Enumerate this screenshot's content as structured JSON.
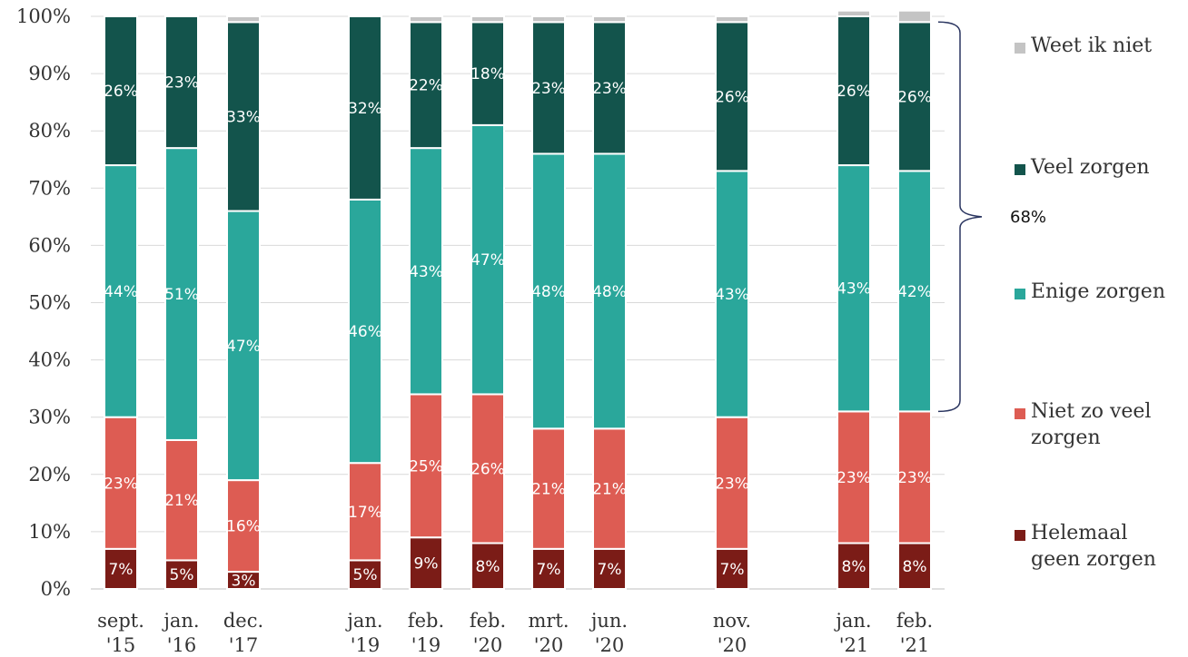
{
  "chart_data": {
    "type": "bar",
    "stacked": true,
    "normalized_percent": true,
    "ylim": [
      0,
      100
    ],
    "y_ticks": [
      "0%",
      "10%",
      "20%",
      "30%",
      "40%",
      "50%",
      "60%",
      "70%",
      "80%",
      "90%",
      "100%"
    ],
    "grid": true,
    "legend_position": "right",
    "categories": [
      {
        "line1": "sept.",
        "line2": "'15"
      },
      {
        "line1": "jan.",
        "line2": "'16"
      },
      {
        "line1": "dec.",
        "line2": "'17"
      },
      {
        "line1": "jan.",
        "line2": "'19"
      },
      {
        "line1": "feb.",
        "line2": "'19"
      },
      {
        "line1": "feb.",
        "line2": "'20"
      },
      {
        "line1": "mrt.",
        "line2": "'20"
      },
      {
        "line1": "jun.",
        "line2": "'20"
      },
      {
        "line1": "nov.",
        "line2": "'20"
      },
      {
        "line1": "jan.",
        "line2": "'21"
      },
      {
        "line1": "feb.",
        "line2": "'21"
      }
    ],
    "series": [
      {
        "name": "Helemaal geen zorgen",
        "color": "#7b1c17",
        "values": [
          7,
          5,
          3,
          5,
          9,
          8,
          7,
          7,
          7,
          8,
          8
        ],
        "labels": [
          "7%",
          "5%",
          "3%",
          "5%",
          "9%",
          "8%",
          "7%",
          "7%",
          "7%",
          "8%",
          "8%"
        ]
      },
      {
        "name": "Niet zo veel zorgen",
        "color": "#dd5c53",
        "values": [
          23,
          21,
          16,
          17,
          25,
          26,
          21,
          21,
          23,
          23,
          23
        ],
        "labels": [
          "23%",
          "21%",
          "16%",
          "17%",
          "25%",
          "26%",
          "21%",
          "21%",
          "23%",
          "23%",
          "23%"
        ]
      },
      {
        "name": "Enige zorgen",
        "color": "#2aa79b",
        "values": [
          44,
          51,
          47,
          46,
          43,
          47,
          48,
          48,
          43,
          43,
          42
        ],
        "labels": [
          "44%",
          "51%",
          "47%",
          "46%",
          "43%",
          "47%",
          "48%",
          "48%",
          "43%",
          "43%",
          "42%"
        ]
      },
      {
        "name": "Veel zorgen",
        "color": "#13544c",
        "values": [
          26,
          23,
          33,
          32,
          22,
          18,
          23,
          23,
          26,
          26,
          26
        ],
        "labels": [
          "26%",
          "23%",
          "33%",
          "32%",
          "22%",
          "18%",
          "23%",
          "23%",
          "26%",
          "26%",
          "26%"
        ]
      },
      {
        "name": "Weet ik niet",
        "color": "#c4c4c4",
        "values": [
          0,
          0,
          1,
          0,
          1,
          1,
          1,
          1,
          1,
          1,
          2
        ]
      }
    ],
    "legend": [
      "Weet ik niet",
      "Veel zorgen",
      "Enige zorgen",
      "Niet zo veel zorgen",
      "Helemaal geen zorgen"
    ],
    "annotation": {
      "text": "68%",
      "bracket_series": [
        "Enige zorgen",
        "Veel zorgen"
      ],
      "category": "feb. '21"
    }
  }
}
